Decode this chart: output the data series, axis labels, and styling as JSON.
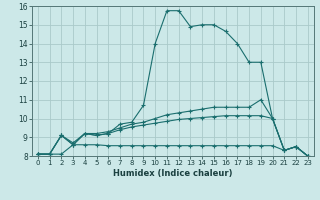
{
  "xlabel": "Humidex (Indice chaleur)",
  "xlim": [
    -0.5,
    23.5
  ],
  "ylim": [
    8,
    16
  ],
  "xticks": [
    0,
    1,
    2,
    3,
    4,
    5,
    6,
    7,
    8,
    9,
    10,
    11,
    12,
    13,
    14,
    15,
    16,
    17,
    18,
    19,
    20,
    21,
    22,
    23
  ],
  "yticks": [
    8,
    9,
    10,
    11,
    12,
    13,
    14,
    15,
    16
  ],
  "bg_color": "#cce8e8",
  "grid_color": "#aacaca",
  "line_color": "#1a6e6e",
  "series": [
    {
      "x": [
        0,
        1,
        2,
        3,
        4,
        5,
        6,
        7,
        8,
        9,
        10,
        11,
        12,
        13,
        14,
        15,
        16,
        17,
        18,
        19,
        20,
        21,
        22,
        23
      ],
      "y": [
        8.1,
        8.1,
        9.1,
        8.6,
        9.2,
        9.1,
        9.2,
        9.7,
        9.8,
        10.7,
        14.0,
        15.75,
        15.75,
        14.9,
        15.0,
        15.0,
        14.65,
        14.0,
        13.0,
        13.0,
        10.0,
        8.3,
        8.5,
        8.0
      ]
    },
    {
      "x": [
        0,
        1,
        2,
        3,
        4,
        5,
        6,
        7,
        8,
        9,
        10,
        11,
        12,
        13,
        14,
        15,
        16,
        17,
        18,
        19,
        20,
        21,
        22,
        23
      ],
      "y": [
        8.1,
        8.1,
        9.1,
        8.7,
        9.2,
        9.2,
        9.3,
        9.5,
        9.7,
        9.8,
        10.0,
        10.2,
        10.3,
        10.4,
        10.5,
        10.6,
        10.6,
        10.6,
        10.6,
        11.0,
        10.0,
        8.3,
        8.5,
        8.0
      ]
    },
    {
      "x": [
        0,
        1,
        2,
        3,
        4,
        5,
        6,
        7,
        8,
        9,
        10,
        11,
        12,
        13,
        14,
        15,
        16,
        17,
        18,
        19,
        20,
        21,
        22,
        23
      ],
      "y": [
        8.1,
        8.1,
        9.1,
        8.6,
        9.2,
        9.1,
        9.2,
        9.4,
        9.55,
        9.65,
        9.75,
        9.85,
        9.95,
        10.0,
        10.05,
        10.1,
        10.15,
        10.15,
        10.15,
        10.15,
        10.0,
        8.3,
        8.5,
        8.0
      ]
    },
    {
      "x": [
        0,
        1,
        2,
        3,
        4,
        5,
        6,
        7,
        8,
        9,
        10,
        11,
        12,
        13,
        14,
        15,
        16,
        17,
        18,
        19,
        20,
        21,
        22,
        23
      ],
      "y": [
        8.1,
        8.1,
        8.1,
        8.6,
        8.6,
        8.6,
        8.55,
        8.55,
        8.55,
        8.55,
        8.55,
        8.55,
        8.55,
        8.55,
        8.55,
        8.55,
        8.55,
        8.55,
        8.55,
        8.55,
        8.55,
        8.3,
        8.5,
        8.0
      ]
    }
  ]
}
